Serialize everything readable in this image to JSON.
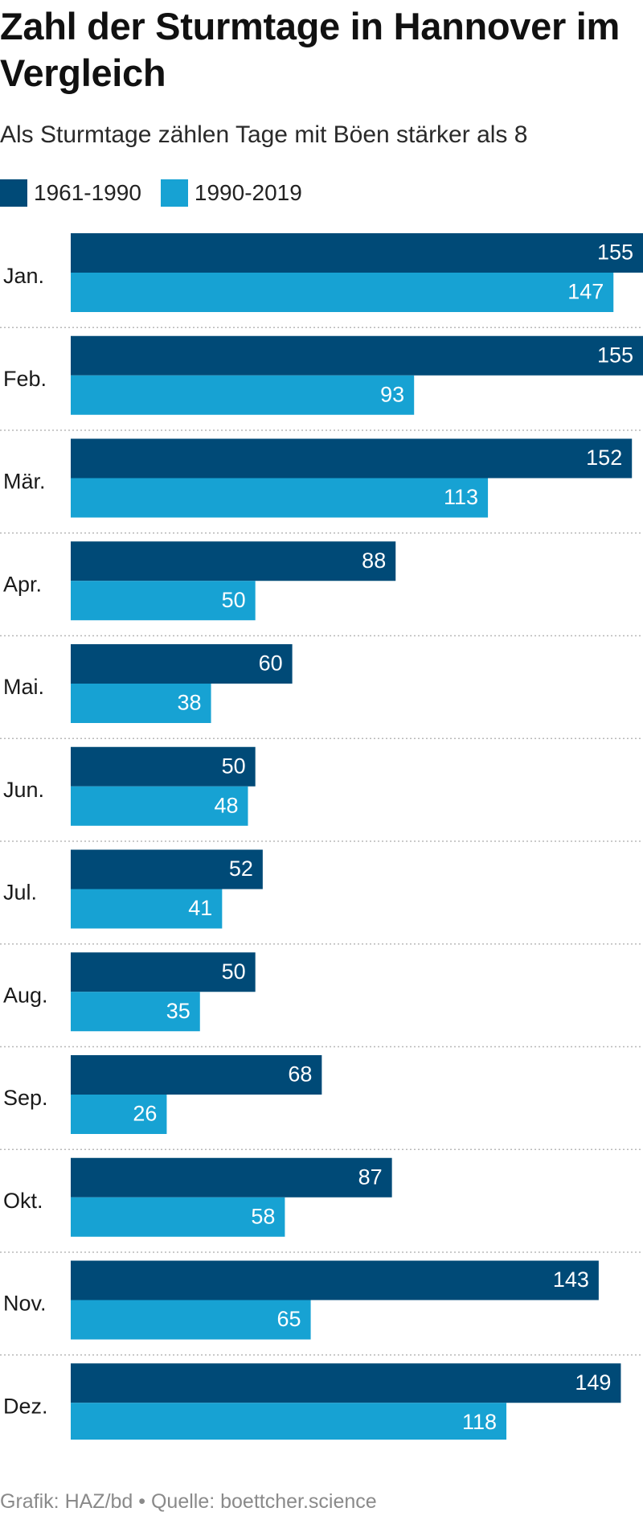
{
  "header": {
    "title": "Zahl der Sturmtage in Hannover im Vergleich",
    "subtitle": "Als Sturmtage zählen Tage mit Böen stärker als 8"
  },
  "legend": [
    {
      "label": "1961-1990",
      "color": "#004a77"
    },
    {
      "label": "1990-2019",
      "color": "#17a2d3"
    }
  ],
  "footer": {
    "credit": "Grafik: HAZ/bd • Quelle: boettcher.science"
  },
  "chart_data": {
    "type": "bar",
    "orientation": "horizontal",
    "categories": [
      "Jan.",
      "Feb.",
      "Mär.",
      "Apr.",
      "Mai.",
      "Jun.",
      "Jul.",
      "Aug.",
      "Sep.",
      "Okt.",
      "Nov.",
      "Dez."
    ],
    "series": [
      {
        "name": "1961-1990",
        "color": "#004a77",
        "values": [
          155,
          155,
          152,
          88,
          60,
          50,
          52,
          50,
          68,
          87,
          143,
          149
        ]
      },
      {
        "name": "1990-2019",
        "color": "#17a2d3",
        "values": [
          147,
          93,
          113,
          50,
          38,
          48,
          41,
          35,
          26,
          58,
          65,
          118
        ]
      }
    ],
    "xlim": [
      0,
      155
    ],
    "grid": false,
    "data_labels": true,
    "legend_position": "top-left"
  }
}
